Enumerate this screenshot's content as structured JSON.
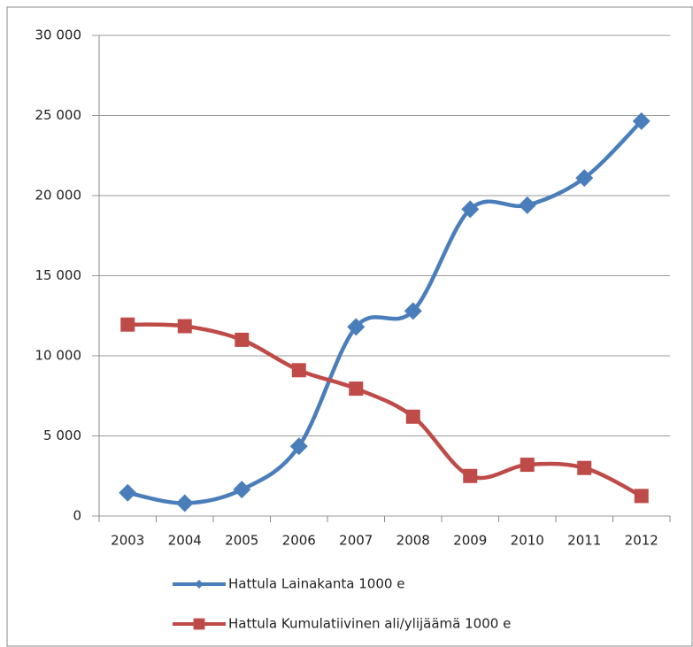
{
  "chart_data": {
    "type": "line",
    "categories": [
      "2003",
      "2004",
      "2005",
      "2006",
      "2007",
      "2008",
      "2009",
      "2010",
      "2011",
      "2012"
    ],
    "series": [
      {
        "name": "Hattula Lainakanta 1000 e",
        "color": "#4a7ebb",
        "marker": "diamond",
        "values": [
          1450,
          800,
          1650,
          4350,
          11800,
          12800,
          19150,
          19400,
          21100,
          24650
        ]
      },
      {
        "name": "Hattula Kumulatiivinen ali/ylijäämä 1000 e",
        "color": "#be4b48",
        "marker": "square",
        "values": [
          11950,
          11850,
          11000,
          9100,
          7950,
          6200,
          2500,
          3200,
          3000,
          1250
        ]
      }
    ],
    "ylim": [
      0,
      30000
    ],
    "yticks": [
      0,
      {
        "value": 5000,
        "label": "5 000"
      },
      {
        "value": 10000,
        "label": "10 000"
      },
      {
        "value": 15000,
        "label": "15 000"
      },
      {
        "value": 20000,
        "label": "20 000"
      },
      {
        "value": 25000,
        "label": "25 000"
      },
      {
        "value": 30000,
        "label": "30 000"
      }
    ],
    "grid": true,
    "legend": "bottom",
    "smooth": true
  }
}
